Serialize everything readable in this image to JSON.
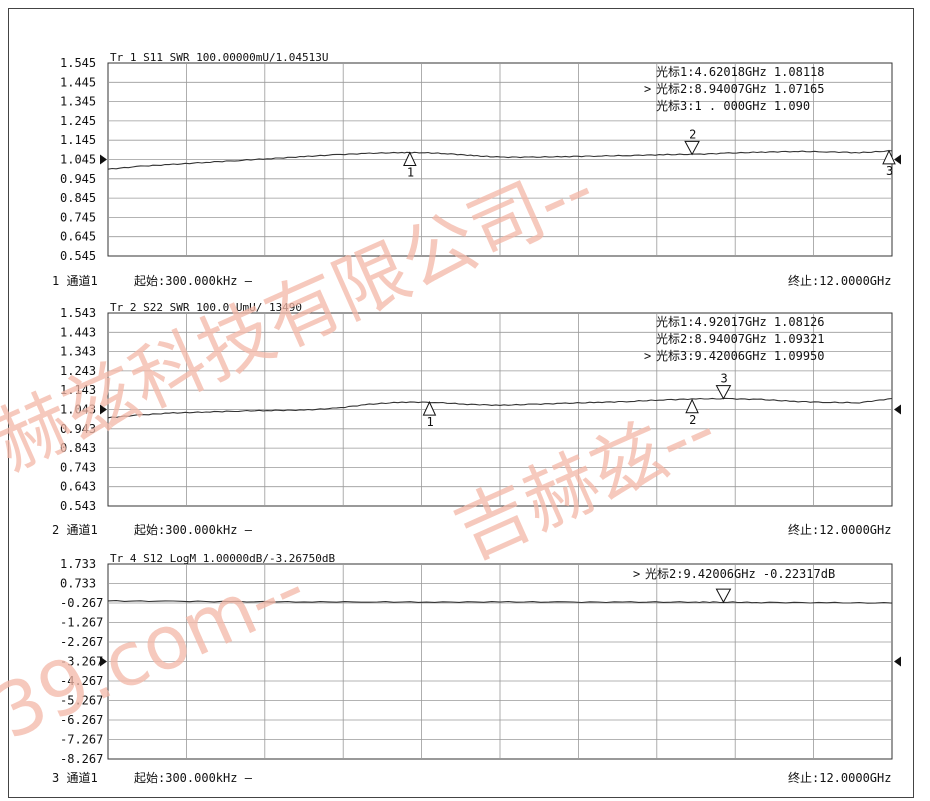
{
  "chart_data": [
    {
      "type": "line",
      "trace_header": "Tr 1  S11 SWR 100.00000mU/1.04513U",
      "yticks": [
        "1.545",
        "1.445",
        "1.345",
        "1.245",
        "1.145",
        "1.045",
        "0.945",
        "0.845",
        "0.745",
        "0.645",
        "0.545"
      ],
      "ylim": [
        0.545,
        1.545
      ],
      "ref_value": 1.045,
      "xlim_ghz": [
        0.0003,
        12.0
      ],
      "grid": true,
      "markers": [
        {
          "id": "1",
          "x_ghz": 4.62018,
          "y": 1.08118,
          "label": "光标1:4.62018GHz 1.08118",
          "active": false,
          "style": "up"
        },
        {
          "id": "2",
          "x_ghz": 8.94007,
          "y": 1.07165,
          "label": "光标2:8.94007GHz 1.07165",
          "active": true,
          "style": "down"
        },
        {
          "id": "3",
          "x_ghz": 12.0,
          "y": 1.09,
          "label": "光标3:1 .  000GHz 1.090  ",
          "active": false,
          "style": "up"
        }
      ],
      "series": [
        {
          "values_x_ghz": [
            0.0003,
            0.5,
            1,
            1.5,
            2,
            2.5,
            3,
            3.5,
            4,
            4.5,
            4.8,
            5.2,
            5.6,
            6,
            6.5,
            7,
            7.5,
            8,
            8.5,
            9,
            9.5,
            10,
            10.5,
            11,
            11.5,
            12
          ],
          "values_y": [
            0.995,
            1.01,
            1.02,
            1.03,
            1.04,
            1.05,
            1.06,
            1.07,
            1.077,
            1.081,
            1.081,
            1.075,
            1.065,
            1.057,
            1.057,
            1.06,
            1.063,
            1.066,
            1.07,
            1.072,
            1.078,
            1.083,
            1.087,
            1.085,
            1.08,
            1.09
          ]
        }
      ],
      "footer": {
        "channel": "1  通道1",
        "start": "起始:300.000kHz —",
        "stop": "终止:12.0000GHz"
      }
    },
    {
      "type": "line",
      "trace_header": "Tr 2  S22 SWR 100.0  UmU/  13490",
      "yticks": [
        "1.543",
        "1.443",
        "1.343",
        "1.243",
        "1.143",
        "1.043",
        "0.943",
        "0.843",
        "0.743",
        "0.643",
        "0.543"
      ],
      "ylim": [
        0.543,
        1.543
      ],
      "ref_value": 1.043,
      "xlim_ghz": [
        0.0003,
        12.0
      ],
      "grid": true,
      "markers": [
        {
          "id": "1",
          "x_ghz": 4.92017,
          "y": 1.08126,
          "label": "光标1:4.92017GHz 1.08126",
          "active": false,
          "style": "up"
        },
        {
          "id": "2",
          "x_ghz": 8.94007,
          "y": 1.09321,
          "label": "光标2:8.94007GHz 1.09321",
          "active": false,
          "style": "up"
        },
        {
          "id": "3",
          "x_ghz": 9.42006,
          "y": 1.0995,
          "label": "光标3:9.42006GHz 1.09950",
          "active": true,
          "style": "down"
        }
      ],
      "series": [
        {
          "values_x_ghz": [
            0.0003,
            0.5,
            1,
            1.5,
            2,
            2.5,
            3,
            3.5,
            4,
            4.5,
            5,
            5.5,
            6,
            6.5,
            7,
            7.5,
            8,
            8.5,
            9,
            9.5,
            10,
            10.5,
            11,
            11.5,
            12
          ],
          "values_y": [
            1.0,
            1.015,
            1.025,
            1.03,
            1.035,
            1.038,
            1.04,
            1.05,
            1.07,
            1.081,
            1.08,
            1.07,
            1.065,
            1.07,
            1.075,
            1.08,
            1.085,
            1.093,
            1.098,
            1.099,
            1.095,
            1.085,
            1.08,
            1.078,
            1.1
          ]
        }
      ],
      "footer": {
        "channel": "2  通道1",
        "start": "起始:300.000kHz —",
        "stop": "终止:12.0000GHz"
      }
    },
    {
      "type": "line",
      "trace_header": "Tr 4  S12 LogM 1.00000dB/-3.26750dB",
      "yticks": [
        "1.733",
        "0.733",
        "-0.267",
        "-1.267",
        "-2.267",
        "-3.267",
        "-4.267",
        "-5.267",
        "-6.267",
        "-7.267",
        "-8.267"
      ],
      "ylim": [
        -8.267,
        1.733
      ],
      "ref_value": -3.267,
      "xlim_ghz": [
        0.0003,
        12.0
      ],
      "grid": true,
      "markers": [
        {
          "id": "2",
          "x_ghz": 9.42006,
          "y": -0.22317,
          "label": "光标2:9.42006GHz -0.22317dB",
          "active": true,
          "style": "down"
        }
      ],
      "series": [
        {
          "values_x_ghz": [
            0.0003,
            1,
            2,
            3,
            4,
            5,
            6,
            7,
            8,
            9,
            9.42,
            10,
            11,
            12
          ],
          "values_y": [
            -0.16,
            -0.18,
            -0.2,
            -0.21,
            -0.21,
            -0.22,
            -0.21,
            -0.22,
            -0.22,
            -0.22,
            -0.223,
            -0.24,
            -0.25,
            -0.27
          ]
        }
      ],
      "footer": {
        "channel": "3  通道1",
        "start": "起始:300.000kHz —",
        "stop": "终止:12.0000GHz"
      }
    }
  ],
  "watermark": {
    "line1": "赫兹科技有限公司--",
    "line2": "吉赫兹--",
    "line3": "39.com--"
  },
  "colors": {
    "trace": "#333333",
    "grid": "#9a9a9a",
    "watermark": "#f4b8a8"
  }
}
